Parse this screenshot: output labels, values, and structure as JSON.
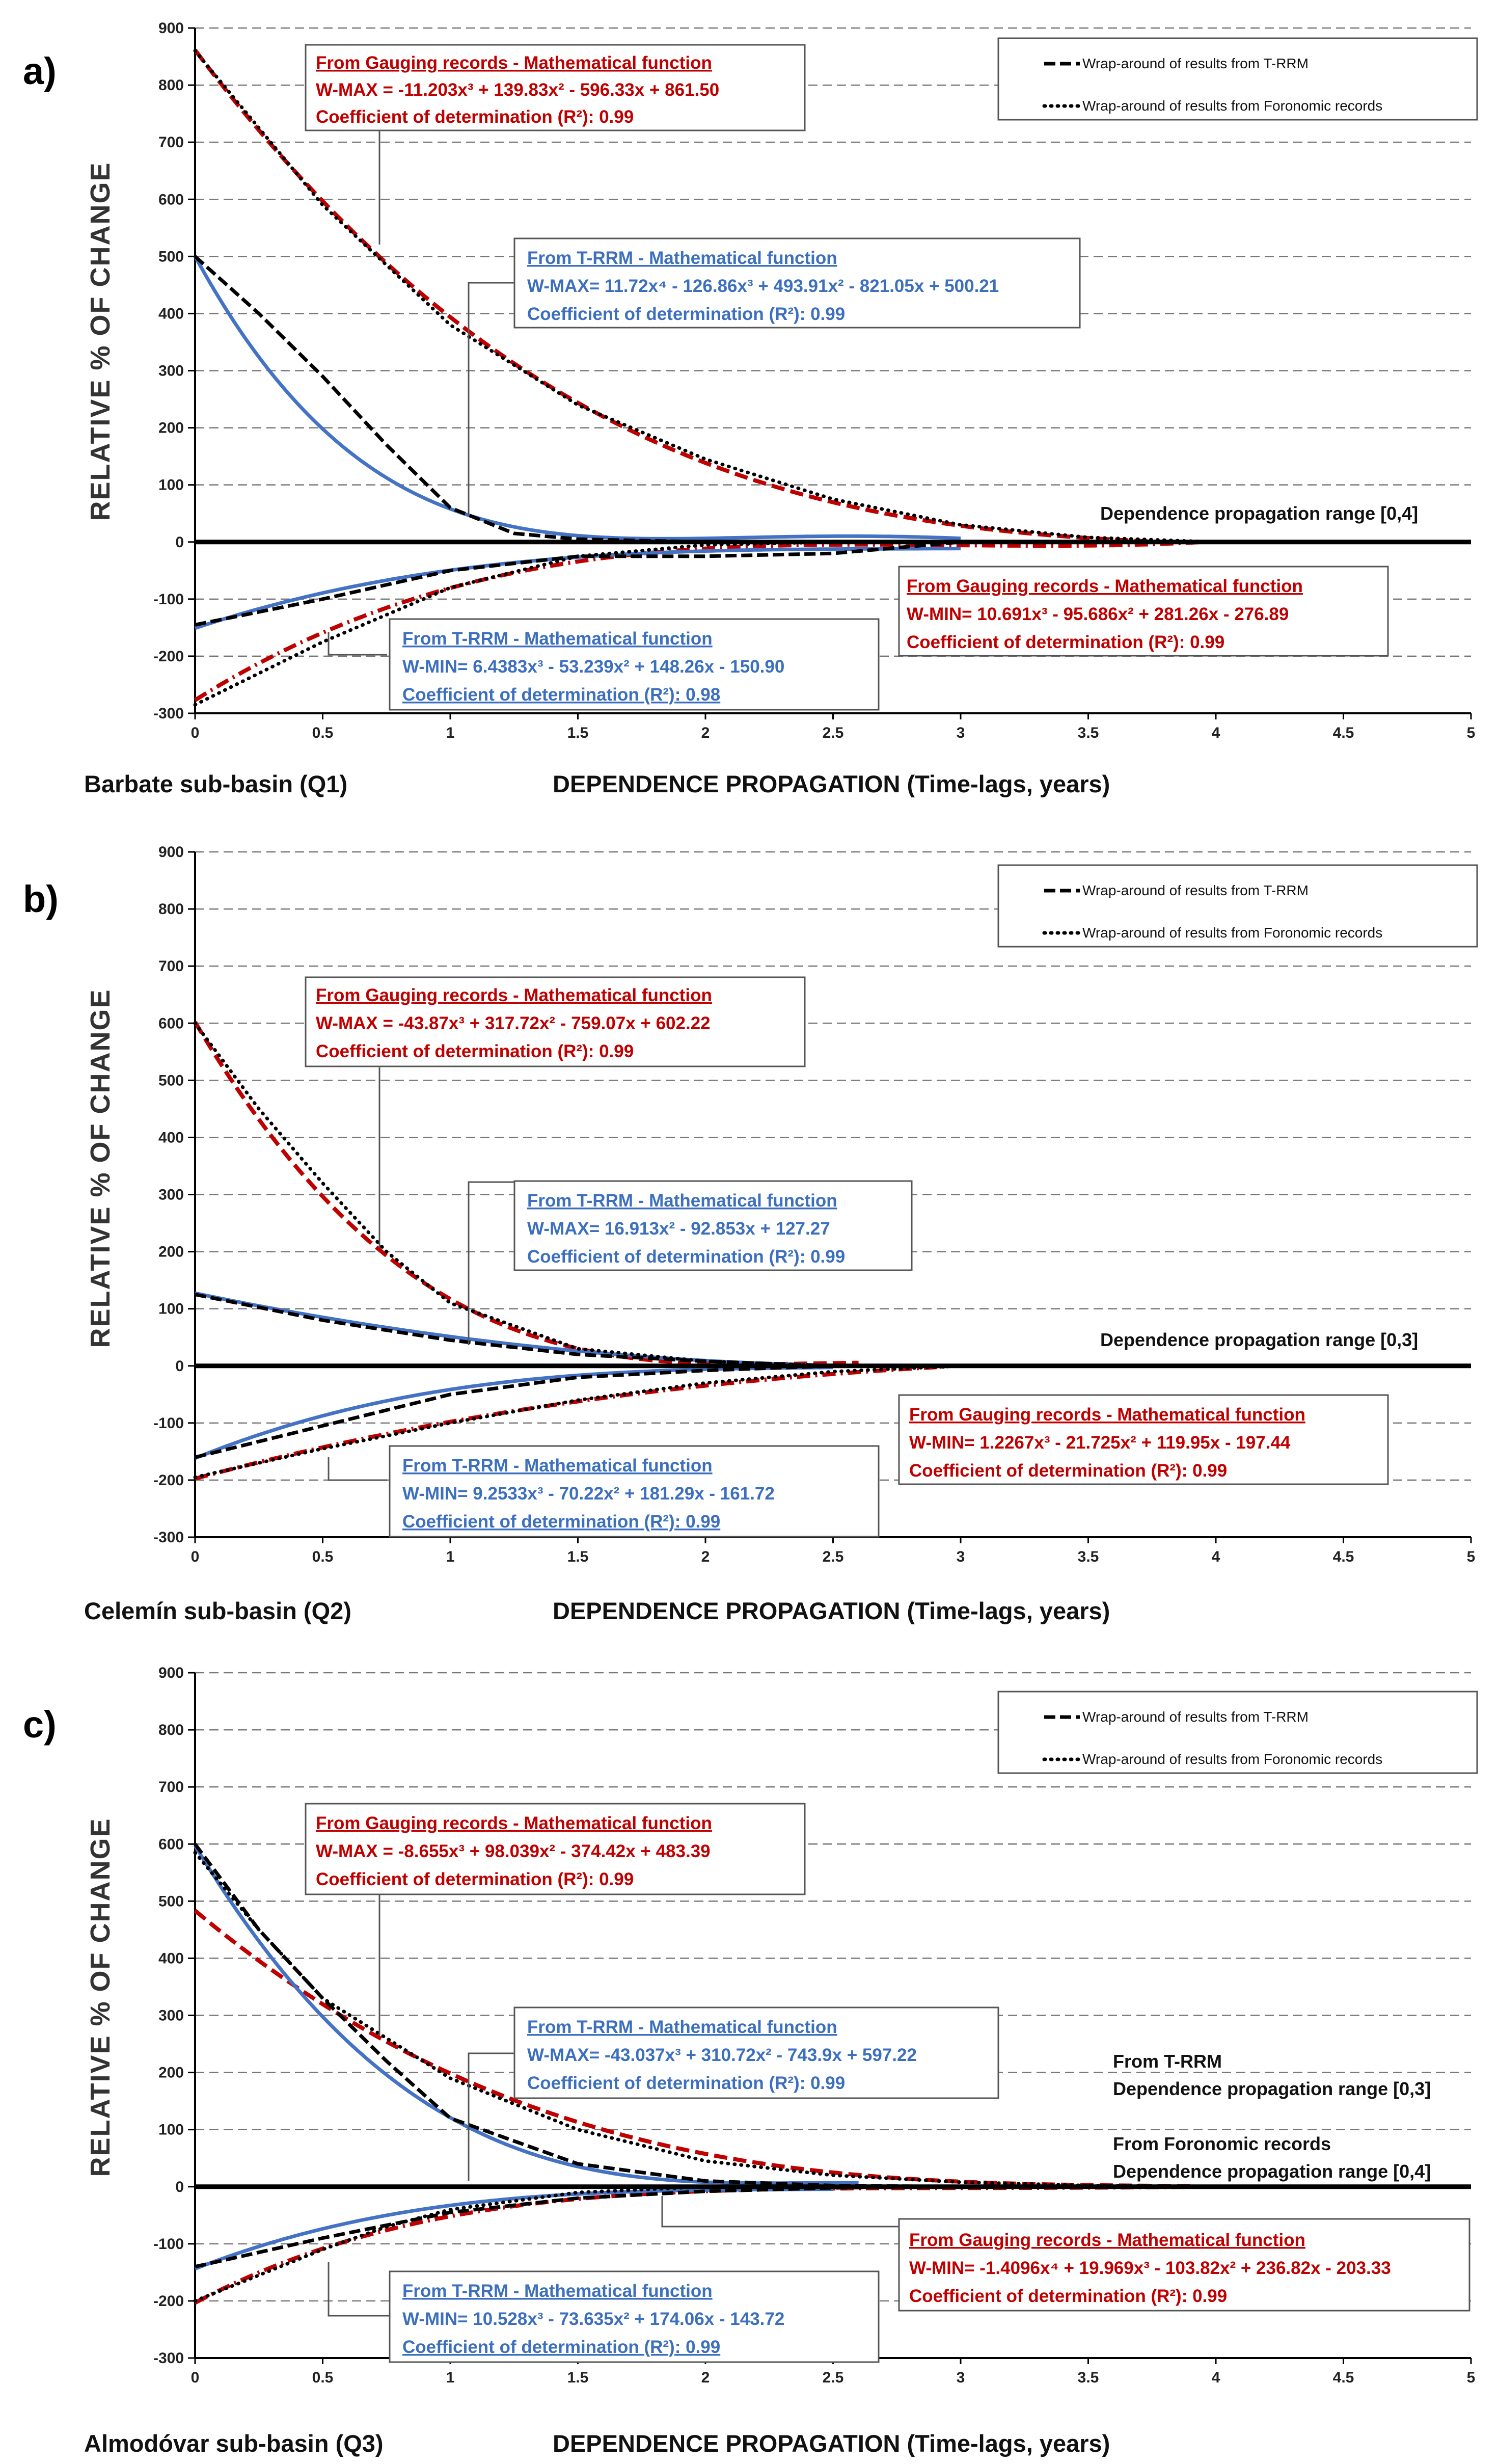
{
  "colors": {
    "red": "#c00000",
    "blue": "#4472c4",
    "black": "#000000",
    "grid": "#777777"
  },
  "legend": {
    "trrm": "Wrap-around of results from T-RRM",
    "foronomic": "Wrap-around of results from Foronomic records"
  },
  "chart_data": [
    {
      "type": "line",
      "panel_label": "a)",
      "subbasin": "Barbate sub-basin (Q1)",
      "xlabel": "DEPENDENCE PROPAGATION (Time-lags, years)",
      "ylabel": "RELATIVE % OF CHANGE",
      "xlim": [
        0,
        5
      ],
      "ylim": [
        -300,
        900
      ],
      "x_ticks": [
        "0",
        "0.5",
        "1",
        "1.5",
        "2",
        "2.5",
        "3",
        "3.5",
        "4",
        "4.5",
        "5"
      ],
      "y_ticks": [
        "900",
        "800",
        "700",
        "600",
        "500",
        "400",
        "300",
        "200",
        "100",
        "0",
        "-100",
        "-200",
        "-300"
      ],
      "range_text": [
        "Dependence propagation range [0,4]"
      ],
      "series": [
        {
          "name": "From Gauging records W-MAX",
          "style": "red-dash",
          "coeffs": [
            861.5,
            -596.33,
            139.83,
            -11.203
          ],
          "xmax": 4.0
        },
        {
          "name": "From Gauging records W-MIN",
          "style": "red-dashdot",
          "coeffs": [
            -276.89,
            281.26,
            -95.686,
            10.691
          ],
          "xmax": 4.0
        },
        {
          "name": "From T-RRM W-MAX",
          "style": "blue",
          "coeffs": [
            500.21,
            -821.05,
            493.91,
            -126.86,
            11.72
          ],
          "xmax": 3.0
        },
        {
          "name": "From T-RRM W-MIN",
          "style": "blue",
          "coeffs": [
            -150.9,
            148.26,
            -53.239,
            6.4383
          ],
          "xmax": 3.0
        },
        {
          "name": "Wrap-around T-RRM (max)",
          "style": "black-dash",
          "x": [
            0,
            0.25,
            0.5,
            0.75,
            1.0,
            1.25,
            1.5,
            2.0
          ],
          "y": [
            500,
            400,
            290,
            170,
            60,
            15,
            5,
            0
          ]
        },
        {
          "name": "Wrap-around T-RRM (min)",
          "style": "black-dash",
          "x": [
            0,
            0.5,
            1.0,
            1.5,
            2.0,
            2.5,
            3.0
          ],
          "y": [
            -145,
            -100,
            -50,
            -25,
            -25,
            -20,
            0
          ]
        },
        {
          "name": "Wrap-around Foronomic (max)",
          "style": "black-dot",
          "x": [
            0,
            0.5,
            1.0,
            1.5,
            2.0,
            2.5,
            3.0,
            3.5,
            4.0
          ],
          "y": [
            860,
            590,
            380,
            240,
            145,
            75,
            30,
            8,
            0
          ]
        },
        {
          "name": "Wrap-around Foronomic (min)",
          "style": "black-dot",
          "x": [
            0,
            0.5,
            1.0,
            1.5,
            2.0,
            2.5,
            3.0
          ],
          "y": [
            -285,
            -175,
            -80,
            -25,
            -5,
            0,
            0
          ]
        }
      ],
      "annotations": [
        {
          "color": "red",
          "title": "From Gauging records - Mathematical function",
          "eq": "W-MAX = -11.203x³ + 139.83x² - 596.33x + 861.50",
          "r2": "Coefficient of determination (R²): 0.99"
        },
        {
          "color": "blue",
          "title": "From T-RRM - Mathematical function",
          "eq": "W-MAX= 11.72x⁴ - 126.86x³ + 493.91x² - 821.05x + 500.21",
          "r2": "Coefficient of determination (R²): 0.99"
        },
        {
          "color": "red",
          "title": "From Gauging records - Mathematical function",
          "eq": "W-MIN= 10.691x³ - 95.686x² + 281.26x - 276.89",
          "r2": "Coefficient of determination (R²): 0.99"
        },
        {
          "color": "blue",
          "title": "From T-RRM - Mathematical function",
          "eq": "W-MIN= 6.4383x³ - 53.239x² + 148.26x - 150.90",
          "r2": "Coefficient of determination (R²): 0.98"
        }
      ]
    },
    {
      "type": "line",
      "panel_label": "b)",
      "subbasin": "Celemín sub-basin (Q2)",
      "xlabel": "DEPENDENCE PROPAGATION (Time-lags, years)",
      "ylabel": "RELATIVE % OF CHANGE",
      "xlim": [
        0,
        5
      ],
      "ylim": [
        -300,
        900
      ],
      "x_ticks": [
        "0",
        "0.5",
        "1",
        "1.5",
        "2",
        "2.5",
        "3",
        "3.5",
        "4",
        "4.5",
        "5"
      ],
      "y_ticks": [
        "900",
        "800",
        "700",
        "600",
        "500",
        "400",
        "300",
        "200",
        "100",
        "0",
        "-100",
        "-200",
        "-300"
      ],
      "range_text": [
        "Dependence propagation range [0,3]"
      ],
      "series": [
        {
          "name": "From Gauging records W-MAX",
          "style": "red-dash",
          "coeffs": [
            602.22,
            -759.07,
            317.72,
            -43.87
          ],
          "xmax": 2.6
        },
        {
          "name": "From Gauging records W-MIN",
          "style": "red-dashdot",
          "coeffs": [
            -197.44,
            119.95,
            -21.725,
            1.2267
          ],
          "xmax": 2.95
        },
        {
          "name": "From T-RRM W-MAX",
          "style": "blue",
          "coeffs": [
            127.27,
            -92.853,
            16.913
          ],
          "xmax": 2.5
        },
        {
          "name": "From T-RRM W-MIN",
          "style": "blue",
          "coeffs": [
            -161.72,
            181.29,
            -70.22,
            9.2533
          ],
          "xmax": 2.5
        },
        {
          "name": "Wrap-around T-RRM (max)",
          "style": "black-dash",
          "x": [
            0,
            0.5,
            1.0,
            1.5,
            2.0,
            2.5
          ],
          "y": [
            125,
            80,
            45,
            20,
            8,
            0
          ]
        },
        {
          "name": "Wrap-around T-RRM (min)",
          "style": "black-dash",
          "x": [
            0,
            0.5,
            1.0,
            1.5,
            2.0,
            2.5
          ],
          "y": [
            -160,
            -105,
            -50,
            -20,
            -8,
            0
          ]
        },
        {
          "name": "Wrap-around Foronomic (max)",
          "style": "black-dot",
          "x": [
            0,
            0.25,
            0.5,
            0.75,
            1.0,
            1.5,
            2.0,
            2.5
          ],
          "y": [
            600,
            450,
            320,
            200,
            110,
            30,
            8,
            0
          ]
        },
        {
          "name": "Wrap-around Foronomic (min)",
          "style": "black-dot",
          "x": [
            0,
            0.5,
            1.0,
            1.5,
            2.0,
            2.5,
            3.0
          ],
          "y": [
            -195,
            -145,
            -100,
            -60,
            -30,
            -10,
            0
          ]
        }
      ],
      "annotations": [
        {
          "color": "red",
          "title": "From Gauging records - Mathematical function",
          "eq": "W-MAX = -43.87x³ + 317.72x² - 759.07x + 602.22",
          "r2": "Coefficient of determination (R²): 0.99"
        },
        {
          "color": "blue",
          "title": "From T-RRM - Mathematical function",
          "eq": "W-MAX= 16.913x² - 92.853x + 127.27",
          "r2": "Coefficient of determination (R²): 0.99"
        },
        {
          "color": "red",
          "title": "From Gauging records - Mathematical function",
          "eq": "W-MIN= 1.2267x³ - 21.725x² + 119.95x - 197.44",
          "r2": "Coefficient of determination (R²): 0.99"
        },
        {
          "color": "blue",
          "title": "From T-RRM - Mathematical function",
          "eq": "W-MIN= 9.2533x³ - 70.22x² + 181.29x - 161.72",
          "r2": "Coefficient of determination (R²): 0.99"
        }
      ]
    },
    {
      "type": "line",
      "panel_label": "c)",
      "subbasin": "Almodóvar sub-basin (Q3)",
      "xlabel": "DEPENDENCE PROPAGATION (Time-lags, years)",
      "ylabel": "RELATIVE % OF CHANGE",
      "xlim": [
        0,
        5
      ],
      "ylim": [
        -300,
        900
      ],
      "x_ticks": [
        "0",
        "0.5",
        "1",
        "1.5",
        "2",
        "2.5",
        "3",
        "3.5",
        "4",
        "4.5",
        "5"
      ],
      "y_ticks": [
        "900",
        "800",
        "700",
        "600",
        "500",
        "400",
        "300",
        "200",
        "100",
        "0",
        "-100",
        "-200",
        "-300"
      ],
      "range_text": [
        "From T-RRM",
        "Dependence propagation range [0,3]",
        "From Foronomic records",
        "Dependence propagation range [0,4]"
      ],
      "series": [
        {
          "name": "From Gauging records W-MAX",
          "style": "red-dash",
          "coeffs": [
            483.39,
            -374.42,
            98.039,
            -8.655
          ],
          "xmax": 3.9
        },
        {
          "name": "From Gauging records W-MIN",
          "style": "red-dashdot",
          "coeffs": [
            -203.33,
            236.82,
            -103.82,
            19.969,
            -1.4096
          ],
          "xmax": 3.9
        },
        {
          "name": "From T-RRM W-MAX",
          "style": "blue",
          "coeffs": [
            597.22,
            -743.9,
            310.72,
            -43.037
          ],
          "xmax": 2.6
        },
        {
          "name": "From T-RRM W-MIN",
          "style": "blue",
          "coeffs": [
            -143.72,
            174.06,
            -73.635,
            10.528
          ],
          "xmax": 2.5
        },
        {
          "name": "Wrap-around T-RRM (max)",
          "style": "black-dash",
          "x": [
            0,
            0.25,
            0.5,
            0.75,
            1.0,
            1.5,
            2.0,
            2.5,
            3.0
          ],
          "y": [
            600,
            450,
            330,
            220,
            120,
            40,
            10,
            2,
            0
          ]
        },
        {
          "name": "Wrap-around T-RRM (min)",
          "style": "black-dash",
          "x": [
            0,
            0.5,
            1.0,
            1.5,
            2.0,
            2.5,
            3.0
          ],
          "y": [
            -140,
            -90,
            -45,
            -20,
            -8,
            -2,
            0
          ]
        },
        {
          "name": "Wrap-around Foronomic (max)",
          "style": "black-dot",
          "x": [
            0,
            0.25,
            0.5,
            0.75,
            1.0,
            1.5,
            2.0,
            2.5,
            3.0,
            3.5,
            4.0
          ],
          "y": [
            585,
            450,
            330,
            260,
            190,
            100,
            45,
            20,
            8,
            2,
            0
          ]
        },
        {
          "name": "Wrap-around Foronomic (min)",
          "style": "black-dot",
          "x": [
            0,
            0.25,
            0.5,
            0.75,
            1.0,
            1.5,
            2.0,
            2.5,
            3.0,
            3.5,
            4.0
          ],
          "y": [
            -200,
            -155,
            -110,
            -70,
            -40,
            -10,
            0,
            0,
            0,
            0,
            0
          ]
        }
      ],
      "annotations": [
        {
          "color": "red",
          "title": "From Gauging records - Mathematical function",
          "eq": "W-MAX = -8.655x³ + 98.039x² - 374.42x + 483.39",
          "r2": "Coefficient of determination (R²): 0.99"
        },
        {
          "color": "blue",
          "title": "From T-RRM - Mathematical function",
          "eq": "W-MAX= -43.037x³ + 310.72x² - 743.9x + 597.22",
          "r2": "Coefficient of determination (R²): 0.99"
        },
        {
          "color": "red",
          "title": "From Gauging records - Mathematical function",
          "eq": "W-MIN= -1.4096x⁴ + 19.969x³ - 103.82x² + 236.82x - 203.33",
          "r2": "Coefficient of determination (R²): 0.99"
        },
        {
          "color": "blue",
          "title": "From T-RRM - Mathematical function",
          "eq": "W-MIN= 10.528x³ - 73.635x² + 174.06x - 143.72",
          "r2": "Coefficient of determination (R²): 0.99"
        }
      ]
    }
  ]
}
